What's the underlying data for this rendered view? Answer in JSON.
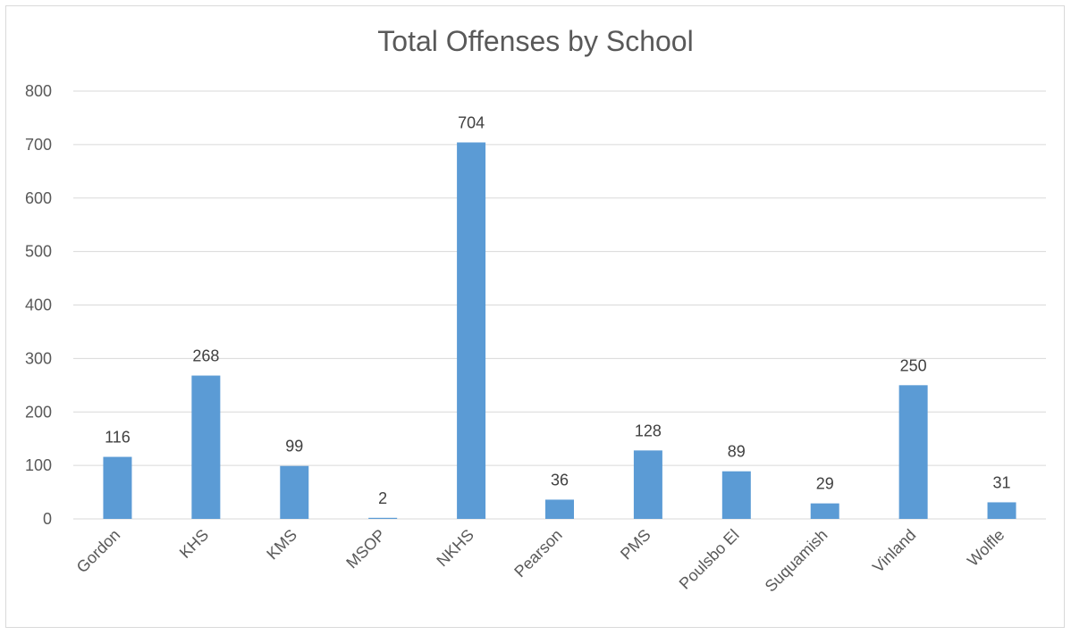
{
  "chart_data": {
    "type": "bar",
    "title": "Total Offenses by School",
    "categories": [
      "Gordon",
      "KHS",
      "KMS",
      "MSOP",
      "NKHS",
      "Pearson",
      "PMS",
      "Poulsbo El",
      "Suquamish",
      "Vinland",
      "Wolfle"
    ],
    "values": [
      116,
      268,
      99,
      2,
      704,
      36,
      128,
      89,
      29,
      250,
      31
    ],
    "ylim": [
      0,
      800
    ],
    "yticks": [
      0,
      100,
      200,
      300,
      400,
      500,
      600,
      700,
      800
    ],
    "grid": true,
    "legend": "none",
    "bar_color": "#5b9bd5",
    "grid_color": "#d9d9d9",
    "text_color": "#595959"
  }
}
